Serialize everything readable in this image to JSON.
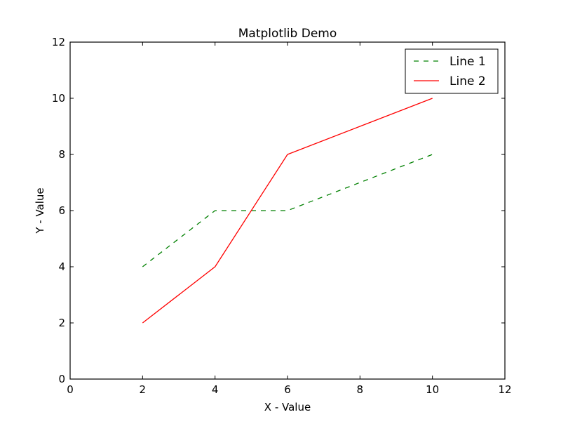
{
  "chart_data": {
    "type": "line",
    "title": "Matplotlib Demo",
    "xlabel": "X - Value",
    "ylabel": "Y - Value",
    "xlim": [
      0,
      12
    ],
    "ylim": [
      0,
      12
    ],
    "xticks": [
      0,
      2,
      4,
      6,
      8,
      10,
      12
    ],
    "yticks": [
      0,
      2,
      4,
      6,
      8,
      10,
      12
    ],
    "grid": false,
    "legend_position": "top-right",
    "series": [
      {
        "name": "Line 1",
        "color": "#008000",
        "style": "dashed",
        "x": [
          2,
          4,
          6,
          8,
          10
        ],
        "y": [
          4,
          6,
          6,
          7,
          8
        ]
      },
      {
        "name": "Line 2",
        "color": "#ff0000",
        "style": "solid",
        "x": [
          2,
          4,
          6,
          8,
          10
        ],
        "y": [
          2,
          4,
          8,
          9,
          10
        ]
      }
    ]
  }
}
